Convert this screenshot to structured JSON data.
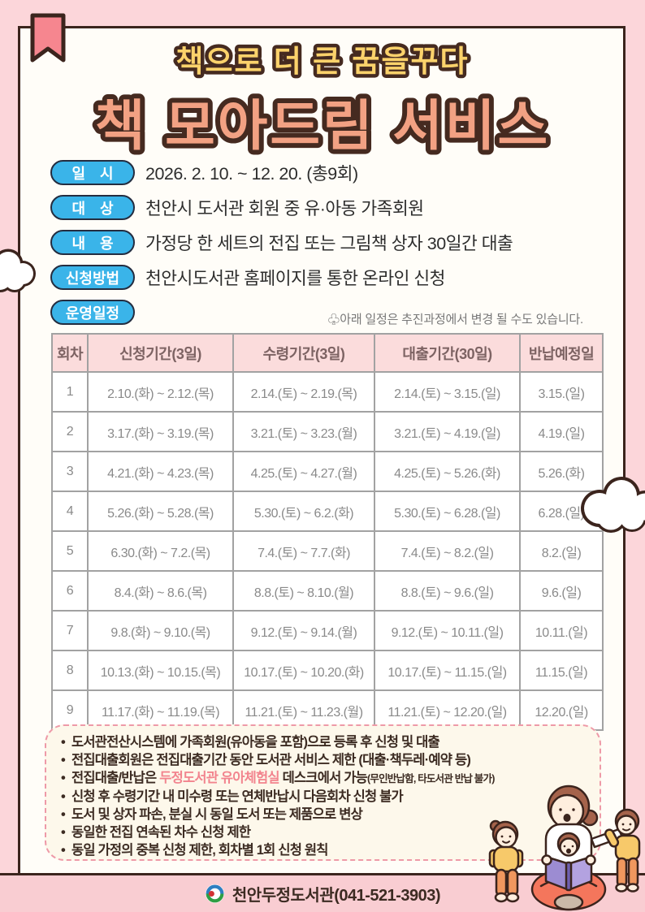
{
  "poster": {
    "subtitle": "책으로 더 큰 꿈을꾸다",
    "title": "책 모아드림 서비스",
    "info_rows": [
      {
        "label": "일　시",
        "text": "2026. 2. 10. ~ 12. 20. (총9회)"
      },
      {
        "label": "대　상",
        "text": "천안시 도서관 회원 중 유·아동 가족회원"
      },
      {
        "label": "내　용",
        "text": "가정당 한 세트의 전집 또는 그림책 상자 30일간 대출"
      },
      {
        "label": "신청방법",
        "text": "천안시도서관 홈페이지를 통한 온라인 신청"
      },
      {
        "label": "운영일정",
        "text": ""
      }
    ],
    "schedule_note": "♧아래 일정은 추진과정에서 변경 될 수도 있습니다.",
    "table": {
      "headers": [
        "회차",
        "신청기간(3일)",
        "수령기간(3일)",
        "대출기간(30일)",
        "반납예정일"
      ],
      "rows": [
        [
          "1",
          "2.10.(화) ~ 2.12.(목)",
          "2.14.(토) ~ 2.19.(목)",
          "2.14.(토) ~ 3.15.(일)",
          "3.15.(일)"
        ],
        [
          "2",
          "3.17.(화) ~ 3.19.(목)",
          "3.21.(토) ~ 3.23.(월)",
          "3.21.(토) ~ 4.19.(일)",
          "4.19.(일)"
        ],
        [
          "3",
          "4.21.(화) ~ 4.23.(목)",
          "4.25.(토) ~ 4.27.(월)",
          "4.25.(토) ~ 5.26.(화)",
          "5.26.(화)"
        ],
        [
          "4",
          "5.26.(화) ~ 5.28.(목)",
          "5.30.(토) ~ 6.2.(화)",
          "5.30.(토) ~ 6.28.(일)",
          "6.28.(일)"
        ],
        [
          "5",
          "6.30.(화) ~ 7.2.(목)",
          "7.4.(토) ~ 7.7.(화)",
          "7.4.(토) ~ 8.2.(일)",
          "8.2.(일)"
        ],
        [
          "6",
          "8.4.(화) ~ 8.6.(목)",
          "8.8.(토) ~ 8.10.(월)",
          "8.8.(토) ~ 9.6.(일)",
          "9.6.(일)"
        ],
        [
          "7",
          "9.8.(화) ~ 9.10.(목)",
          "9.12.(토) ~ 9.14.(월)",
          "9.12.(토) ~ 10.11.(일)",
          "10.11.(일)"
        ],
        [
          "8",
          "10.13.(화) ~ 10.15.(목)",
          "10.17.(토) ~ 10.20.(화)",
          "10.17.(토) ~ 11.15.(일)",
          "11.15.(일)"
        ],
        [
          "9",
          "11.17.(화) ~ 11.19.(목)",
          "11.21.(토) ~ 11.23.(월)",
          "11.21.(토) ~ 12.20.(일)",
          "12.20.(일)"
        ]
      ]
    },
    "notes": [
      [
        {
          "t": "도서관전산시스템에 가족회원(유아동을 포함)으로 등록 후 신청 및 대출"
        }
      ],
      [
        {
          "t": "전집대출회원은 전집대출기간 동안  도서관 서비스 제한 (대출·책두레·예약 등)"
        }
      ],
      [
        {
          "t": "전집대출/반납은 "
        },
        {
          "t": "두정도서관 유아체험실",
          "s": "highlight"
        },
        {
          "t": " 데스크에서 가능"
        },
        {
          "t": "(무인반납함, 타도서관 반납 불가)",
          "s": "small"
        }
      ],
      [
        {
          "t": "신청 후 수령기간 내 미수령 또는 연체반납시 다음회차 신청 불가"
        }
      ],
      [
        {
          "t": "도서 및 상자 파손, 분실 시 동일 도서 또는 제품으로 변상"
        }
      ],
      [
        {
          "t": "동일한 전집 연속된 차수 신청 제한"
        }
      ],
      [
        {
          "t": "동일 가정의 중복 신청 제한, 회차별 1회 신청 원칙"
        }
      ]
    ],
    "footer": {
      "library": "천안두정도서관(041-521-3903)"
    },
    "colors": {
      "background": "#fcd6da",
      "card": "#fffdf8",
      "outline": "#3b241d",
      "title": "#f2a183",
      "subtitle": "#fbd26b",
      "pill": "#3ab4e9",
      "table_header_bg": "#fbdcdc",
      "notes_border": "#ee9aa8",
      "highlight": "#f2848e",
      "footer_bar": "#f9cdd2",
      "bookmark": "#f6868f"
    }
  }
}
